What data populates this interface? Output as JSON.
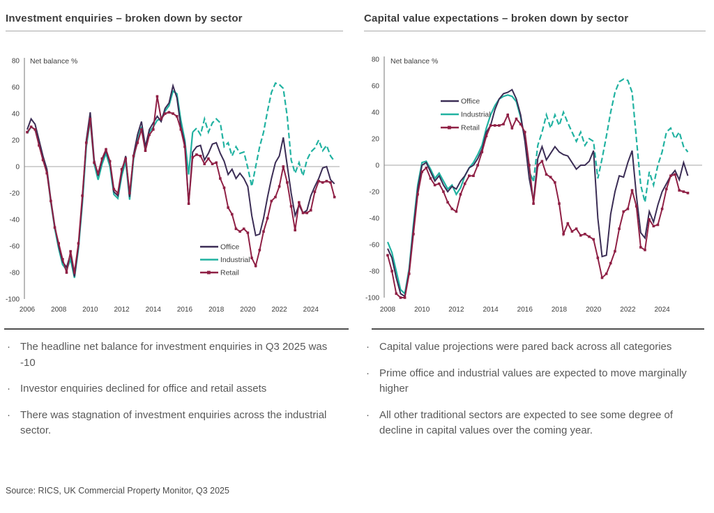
{
  "bullet_glyph": "·",
  "source": "Source: RICS, UK Commercial Property Monitor, Q3 2025",
  "colors": {
    "office": "#3b2d55",
    "industrial": "#21b2a1",
    "retail": "#8f2045",
    "axis_line": "#8c8c8c",
    "zero_line": "#b8b8b8",
    "tick_text": "#3d3d3d",
    "title_text": "#3d3d3d",
    "body_text": "#595959"
  },
  "left_panel": {
    "title": "Investment enquiries – broken down by sector",
    "bullets": [
      "The headline net balance for investment enquiries in Q3 2025 was -10",
      "Investor enquiries declined for office and retail assets",
      "There was stagnation of investment enquiries across the industrial sector."
    ]
  },
  "right_panel": {
    "title": "Capital value expectations – broken down by sector",
    "bullets": [
      "Capital value projections were pared back across all categories",
      "Prime office and industrial values are expected to move marginally higher",
      "All other traditional sectors are expected to see some degree of decline in capital values over the coming year."
    ]
  },
  "chart_data": [
    {
      "type": "line",
      "title": "Investment enquiries – broken down by sector",
      "ylabel": "Net balance %",
      "x_start": 2006,
      "x_step": 0.25,
      "x_end": "2025 Q3",
      "ylim": [
        -100,
        80
      ],
      "grid": "zero-line-only",
      "yticks": [
        80,
        60,
        40,
        20,
        0,
        -20,
        -40,
        -60,
        -80,
        -100
      ],
      "xticks": [
        2006,
        2008,
        2010,
        2012,
        2014,
        2016,
        2018,
        2020,
        2022,
        2024
      ],
      "legend": [
        "Office",
        "Industrial",
        "Retail"
      ],
      "legend_position": "inside-bottom-center",
      "series": [
        {
          "name": "Office",
          "color": "#3b2d55",
          "style": "solid",
          "values": [
            28,
            36,
            32,
            20,
            8,
            -2,
            -25,
            -45,
            -60,
            -72,
            -76,
            -66,
            -83,
            -60,
            -25,
            20,
            41,
            5,
            -7,
            5,
            12,
            3,
            -19,
            -22,
            -4,
            8,
            -23,
            9,
            24,
            34,
            15,
            28,
            33,
            38,
            34,
            44,
            48,
            61,
            52,
            30,
            18,
            -28,
            11,
            15,
            16,
            5,
            10,
            17,
            18,
            10,
            4,
            -6,
            -2,
            -9,
            -5,
            -9,
            -15,
            -37,
            -52,
            -51,
            -39,
            -23,
            -9,
            3,
            8,
            22,
            1,
            -20,
            -37,
            -29,
            -35,
            -33,
            -22,
            -15,
            -9,
            -1,
            0,
            -10,
            -13
          ]
        },
        {
          "name": "Industrial",
          "color": "#21b2a1",
          "style": "solid-then-dashed",
          "dash_from_index": 42,
          "values": [
            25,
            30,
            28,
            17,
            6,
            -4,
            -27,
            -47,
            -62,
            -74,
            -78,
            -70,
            -84,
            -62,
            -28,
            15,
            35,
            2,
            -10,
            2,
            10,
            0,
            -21,
            -24,
            -7,
            4,
            -25,
            6,
            20,
            30,
            12,
            26,
            30,
            35,
            36,
            42,
            46,
            57,
            55,
            35,
            20,
            -6,
            26,
            29,
            24,
            36,
            26,
            33,
            36,
            33,
            15,
            18,
            8,
            15,
            10,
            11,
            -1,
            -15,
            0,
            15,
            26,
            42,
            56,
            63,
            62,
            59,
            38,
            5,
            -5,
            3,
            -7,
            5,
            11,
            14,
            20,
            12,
            16,
            8,
            4
          ]
        },
        {
          "name": "Retail",
          "color": "#8f2045",
          "style": "solid-square-markers",
          "values": [
            26,
            30,
            28,
            16,
            5,
            -5,
            -26,
            -46,
            -58,
            -70,
            -80,
            -64,
            -80,
            -58,
            -22,
            18,
            36,
            3,
            -5,
            6,
            13,
            4,
            -17,
            -20,
            -2,
            6,
            -20,
            8,
            18,
            28,
            12,
            24,
            28,
            53,
            36,
            40,
            41,
            40,
            38,
            28,
            15,
            -28,
            7,
            9,
            8,
            2,
            6,
            2,
            3,
            -9,
            -16,
            -31,
            -36,
            -47,
            -49,
            -47,
            -50,
            -69,
            -75,
            -63,
            -49,
            -39,
            -26,
            -23,
            -15,
            0,
            -12,
            -30,
            -48,
            -27,
            -35,
            -35,
            -33,
            -19,
            -11,
            -12,
            -11,
            -12,
            -23
          ]
        }
      ]
    },
    {
      "type": "line",
      "title": "Capital value expectations – broken down by sector",
      "ylabel": "Net balance %",
      "x_start": 2008,
      "x_step": 0.25,
      "x_end": "2025 Q3",
      "ylim": [
        -100,
        80
      ],
      "grid": "zero-line-only",
      "yticks": [
        80,
        60,
        40,
        20,
        0,
        -20,
        -40,
        -60,
        -80,
        -100
      ],
      "xticks": [
        2008,
        2010,
        2012,
        2014,
        2016,
        2018,
        2020,
        2022,
        2024
      ],
      "legend": [
        "Office",
        "Industrial",
        "Retail"
      ],
      "legend_position": "inside-top-center",
      "series": [
        {
          "name": "Office",
          "color": "#3b2d55",
          "style": "solid",
          "values": [
            -63,
            -70,
            -85,
            -97,
            -99,
            -80,
            -48,
            -18,
            0,
            2,
            -5,
            -12,
            -8,
            -15,
            -20,
            -16,
            -18,
            -12,
            -8,
            -2,
            0,
            5,
            12,
            25,
            30,
            42,
            50,
            54,
            55,
            57,
            50,
            38,
            18,
            -10,
            -27,
            5,
            14,
            4,
            9,
            14,
            10,
            8,
            7,
            2,
            -3,
            0,
            0,
            3,
            11,
            -40,
            -69,
            -68,
            -37,
            -20,
            -8,
            -9,
            2,
            11,
            -23,
            -51,
            -55,
            -35,
            -43,
            -30,
            -20,
            -14,
            -8,
            -4,
            -11,
            2,
            -8
          ]
        },
        {
          "name": "Industrial",
          "color": "#21b2a1",
          "style": "solid-then-dashed",
          "dash_from_index": 34,
          "values": [
            -58,
            -66,
            -80,
            -94,
            -97,
            -78,
            -45,
            -15,
            2,
            3,
            -3,
            -10,
            -6,
            -12,
            -18,
            -15,
            -22,
            -17,
            -8,
            -2,
            2,
            8,
            15,
            28,
            38,
            45,
            50,
            52,
            53,
            52,
            48,
            36,
            20,
            -5,
            -12,
            15,
            25,
            38,
            28,
            38,
            30,
            40,
            32,
            25,
            18,
            25,
            15,
            20,
            18,
            -10,
            5,
            22,
            40,
            55,
            63,
            65,
            64,
            55,
            20,
            -15,
            -28,
            -5,
            -15,
            0,
            10,
            25,
            28,
            20,
            25,
            14,
            10
          ]
        },
        {
          "name": "Retail",
          "color": "#8f2045",
          "style": "solid-square-markers",
          "values": [
            -68,
            -80,
            -97,
            -100,
            -100,
            -82,
            -52,
            -22,
            -5,
            -2,
            -10,
            -15,
            -14,
            -20,
            -28,
            -33,
            -35,
            -22,
            -14,
            -8,
            -8,
            0,
            10,
            22,
            30,
            30,
            30,
            31,
            38,
            28,
            35,
            31,
            25,
            0,
            -29,
            0,
            3,
            -7,
            -9,
            -13,
            -29,
            -52,
            -44,
            -50,
            -48,
            -53,
            -52,
            -54,
            -56,
            -70,
            -85,
            -82,
            -74,
            -65,
            -48,
            -35,
            -33,
            -19,
            -31,
            -62,
            -64,
            -41,
            -46,
            -45,
            -33,
            -18,
            -8,
            -7,
            -19,
            -20,
            -21
          ]
        }
      ]
    }
  ]
}
